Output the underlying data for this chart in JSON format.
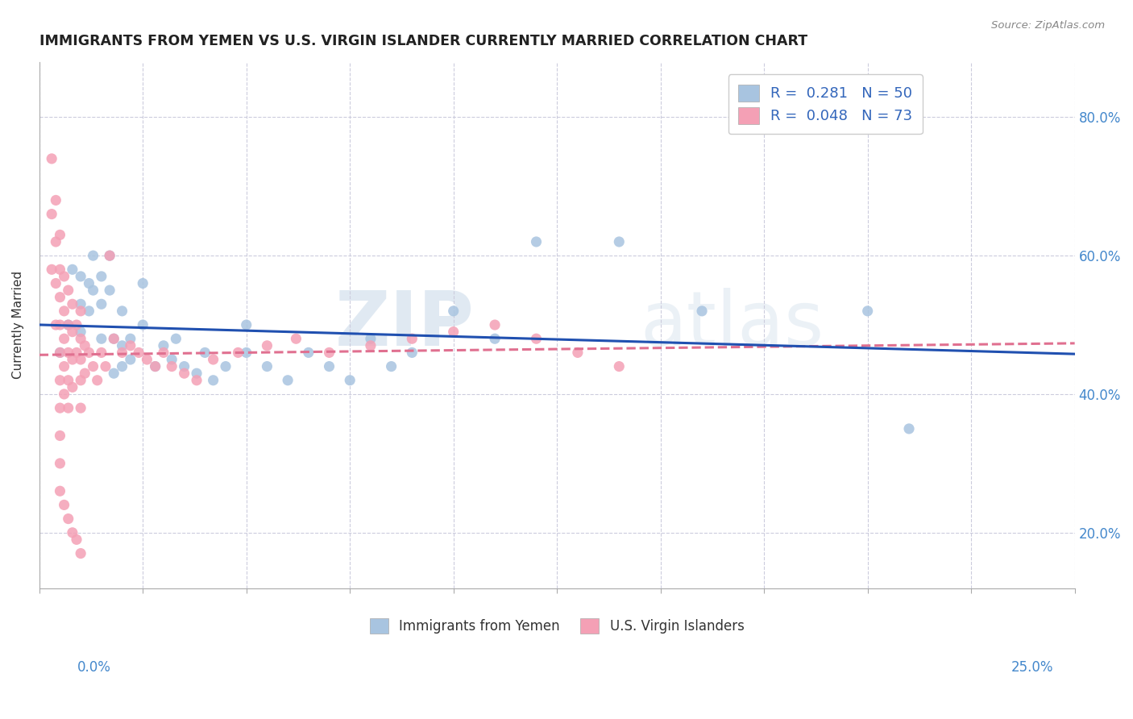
{
  "title": "IMMIGRANTS FROM YEMEN VS U.S. VIRGIN ISLANDER CURRENTLY MARRIED CORRELATION CHART",
  "source": "Source: ZipAtlas.com",
  "xlabel_bottom_left": "0.0%",
  "xlabel_bottom_right": "25.0%",
  "ylabel": "Currently Married",
  "right_yticks": [
    "20.0%",
    "40.0%",
    "60.0%",
    "80.0%"
  ],
  "right_ytick_vals": [
    0.2,
    0.4,
    0.6,
    0.8
  ],
  "legend_entry1": "R =  0.281   N = 50",
  "legend_entry2": "R =  0.048   N = 73",
  "legend_label1": "Immigrants from Yemen",
  "legend_label2": "U.S. Virgin Islanders",
  "xlim": [
    0.0,
    0.25
  ],
  "ylim": [
    0.12,
    0.88
  ],
  "blue_color": "#a8c4e0",
  "pink_color": "#f4a0b5",
  "blue_line_color": "#2050b0",
  "pink_line_color": "#e07090",
  "watermark_zip": "ZIP",
  "watermark_atlas": "atlas",
  "blue_scatter_x": [
    0.005,
    0.007,
    0.008,
    0.01,
    0.01,
    0.01,
    0.012,
    0.012,
    0.013,
    0.013,
    0.015,
    0.015,
    0.015,
    0.017,
    0.017,
    0.018,
    0.018,
    0.02,
    0.02,
    0.02,
    0.022,
    0.022,
    0.025,
    0.025,
    0.028,
    0.03,
    0.032,
    0.033,
    0.035,
    0.038,
    0.04,
    0.042,
    0.045,
    0.05,
    0.05,
    0.055,
    0.06,
    0.065,
    0.07,
    0.075,
    0.08,
    0.085,
    0.09,
    0.1,
    0.11,
    0.12,
    0.14,
    0.16,
    0.2,
    0.21
  ],
  "blue_scatter_y": [
    0.46,
    0.5,
    0.58,
    0.57,
    0.53,
    0.49,
    0.56,
    0.52,
    0.6,
    0.55,
    0.57,
    0.53,
    0.48,
    0.6,
    0.55,
    0.48,
    0.43,
    0.52,
    0.47,
    0.44,
    0.48,
    0.45,
    0.56,
    0.5,
    0.44,
    0.47,
    0.45,
    0.48,
    0.44,
    0.43,
    0.46,
    0.42,
    0.44,
    0.5,
    0.46,
    0.44,
    0.42,
    0.46,
    0.44,
    0.42,
    0.48,
    0.44,
    0.46,
    0.52,
    0.48,
    0.62,
    0.62,
    0.52,
    0.52,
    0.35
  ],
  "pink_scatter_x": [
    0.003,
    0.003,
    0.003,
    0.004,
    0.004,
    0.004,
    0.004,
    0.005,
    0.005,
    0.005,
    0.005,
    0.005,
    0.005,
    0.005,
    0.005,
    0.005,
    0.006,
    0.006,
    0.006,
    0.006,
    0.006,
    0.007,
    0.007,
    0.007,
    0.007,
    0.007,
    0.008,
    0.008,
    0.008,
    0.008,
    0.009,
    0.009,
    0.01,
    0.01,
    0.01,
    0.01,
    0.01,
    0.011,
    0.011,
    0.012,
    0.013,
    0.014,
    0.015,
    0.016,
    0.017,
    0.018,
    0.02,
    0.022,
    0.024,
    0.026,
    0.028,
    0.03,
    0.032,
    0.035,
    0.038,
    0.042,
    0.048,
    0.055,
    0.062,
    0.07,
    0.08,
    0.09,
    0.1,
    0.11,
    0.12,
    0.13,
    0.14,
    0.005,
    0.006,
    0.007,
    0.008,
    0.009,
    0.01
  ],
  "pink_scatter_y": [
    0.74,
    0.66,
    0.58,
    0.68,
    0.62,
    0.56,
    0.5,
    0.63,
    0.58,
    0.54,
    0.5,
    0.46,
    0.42,
    0.38,
    0.34,
    0.3,
    0.57,
    0.52,
    0.48,
    0.44,
    0.4,
    0.55,
    0.5,
    0.46,
    0.42,
    0.38,
    0.53,
    0.49,
    0.45,
    0.41,
    0.5,
    0.46,
    0.52,
    0.48,
    0.45,
    0.42,
    0.38,
    0.47,
    0.43,
    0.46,
    0.44,
    0.42,
    0.46,
    0.44,
    0.6,
    0.48,
    0.46,
    0.47,
    0.46,
    0.45,
    0.44,
    0.46,
    0.44,
    0.43,
    0.42,
    0.45,
    0.46,
    0.47,
    0.48,
    0.46,
    0.47,
    0.48,
    0.49,
    0.5,
    0.48,
    0.46,
    0.44,
    0.26,
    0.24,
    0.22,
    0.2,
    0.19,
    0.17
  ]
}
